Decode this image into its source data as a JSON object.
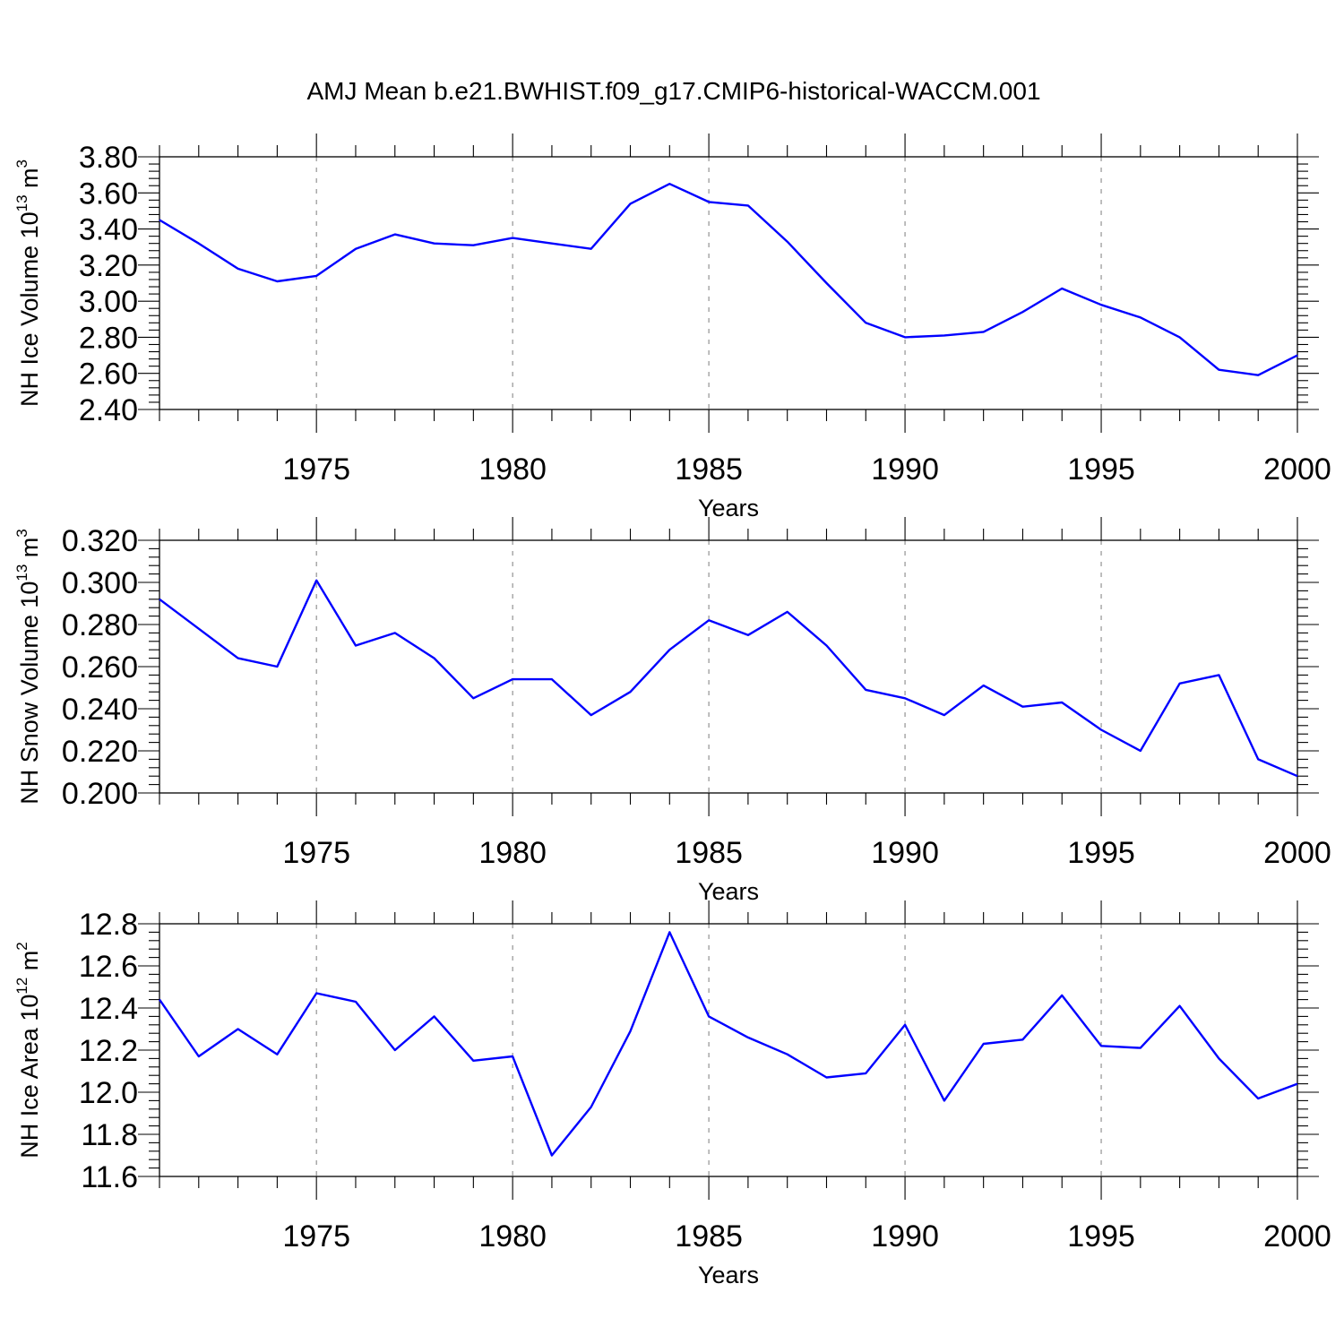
{
  "title": "AMJ Mean b.e21.BWHIST.f09_g17.CMIP6-historical-WACCM.001",
  "chart_data": [
    {
      "type": "line",
      "title": "AMJ Mean b.e21.BWHIST.f09_g17.CMIP6-historical-WACCM.001",
      "xlabel": "Years",
      "ylabel": "NH Ice Volume 10",
      "ylabel_exponent": "13",
      "ylabel_unit": "m",
      "ylabel_unit_exponent": "3",
      "xlim": [
        1971,
        2000
      ],
      "ylim": [
        2.4,
        3.8
      ],
      "xticks": [
        1975,
        1980,
        1985,
        1990,
        1995,
        2000
      ],
      "xtick_labels": [
        "1975",
        "1980",
        "1985",
        "1990",
        "1995",
        "2000"
      ],
      "yticks": [
        2.4,
        2.6,
        2.8,
        3.0,
        3.2,
        3.4,
        3.6,
        3.8
      ],
      "ytick_labels": [
        "2.40",
        "2.60",
        "2.80",
        "3.00",
        "3.20",
        "3.40",
        "3.60",
        "3.80"
      ],
      "grid": "vertical dashed at labeled years",
      "color": "#0000ff",
      "x": [
        1971,
        1972,
        1973,
        1974,
        1975,
        1976,
        1977,
        1978,
        1979,
        1980,
        1981,
        1982,
        1983,
        1984,
        1985,
        1986,
        1987,
        1988,
        1989,
        1990,
        1991,
        1992,
        1993,
        1994,
        1995,
        1996,
        1997,
        1998,
        1999,
        2000
      ],
      "values": [
        3.45,
        3.32,
        3.18,
        3.11,
        3.14,
        3.29,
        3.37,
        3.32,
        3.31,
        3.35,
        3.32,
        3.29,
        3.54,
        3.65,
        3.55,
        3.53,
        3.33,
        3.1,
        2.88,
        2.8,
        2.81,
        2.83,
        2.94,
        3.07,
        2.98,
        2.91,
        2.8,
        2.62,
        2.59,
        2.7
      ]
    },
    {
      "type": "line",
      "xlabel": "Years",
      "ylabel": "NH Snow Volume 10",
      "ylabel_exponent": "13",
      "ylabel_unit": "m",
      "ylabel_unit_exponent": "3",
      "xlim": [
        1971,
        2000
      ],
      "ylim": [
        0.2,
        0.32
      ],
      "xticks": [
        1975,
        1980,
        1985,
        1990,
        1995,
        2000
      ],
      "xtick_labels": [
        "1975",
        "1980",
        "1985",
        "1990",
        "1995",
        "2000"
      ],
      "yticks": [
        0.2,
        0.22,
        0.24,
        0.26,
        0.28,
        0.3,
        0.32
      ],
      "ytick_labels": [
        "0.200",
        "0.220",
        "0.240",
        "0.260",
        "0.280",
        "0.300",
        "0.320"
      ],
      "grid": "vertical dashed at labeled years",
      "color": "#0000ff",
      "x": [
        1971,
        1972,
        1973,
        1974,
        1975,
        1976,
        1977,
        1978,
        1979,
        1980,
        1981,
        1982,
        1983,
        1984,
        1985,
        1986,
        1987,
        1988,
        1989,
        1990,
        1991,
        1992,
        1993,
        1994,
        1995,
        1996,
        1997,
        1998,
        1999,
        2000
      ],
      "values": [
        0.292,
        0.278,
        0.264,
        0.26,
        0.301,
        0.27,
        0.276,
        0.264,
        0.245,
        0.254,
        0.254,
        0.237,
        0.248,
        0.268,
        0.282,
        0.275,
        0.286,
        0.27,
        0.249,
        0.245,
        0.237,
        0.251,
        0.241,
        0.243,
        0.23,
        0.22,
        0.252,
        0.256,
        0.216,
        0.208
      ]
    },
    {
      "type": "line",
      "xlabel": "Years",
      "ylabel": "NH Ice Area 10",
      "ylabel_exponent": "12",
      "ylabel_unit": "m",
      "ylabel_unit_exponent": "2",
      "xlim": [
        1971,
        2000
      ],
      "ylim": [
        11.6,
        12.8
      ],
      "xticks": [
        1975,
        1980,
        1985,
        1990,
        1995,
        2000
      ],
      "xtick_labels": [
        "1975",
        "1980",
        "1985",
        "1990",
        "1995",
        "2000"
      ],
      "yticks": [
        11.6,
        11.8,
        12.0,
        12.2,
        12.4,
        12.6,
        12.8
      ],
      "ytick_labels": [
        "11.6",
        "11.8",
        "12.0",
        "12.2",
        "12.4",
        "12.6",
        "12.8"
      ],
      "grid": "vertical dashed at labeled years",
      "color": "#0000ff",
      "x": [
        1971,
        1972,
        1973,
        1974,
        1975,
        1976,
        1977,
        1978,
        1979,
        1980,
        1981,
        1982,
        1983,
        1984,
        1985,
        1986,
        1987,
        1988,
        1989,
        1990,
        1991,
        1992,
        1993,
        1994,
        1995,
        1996,
        1997,
        1998,
        1999,
        2000
      ],
      "values": [
        12.44,
        12.17,
        12.3,
        12.18,
        12.47,
        12.43,
        12.2,
        12.36,
        12.15,
        12.17,
        11.7,
        11.93,
        12.29,
        12.76,
        12.36,
        12.26,
        12.18,
        12.07,
        12.09,
        12.32,
        11.96,
        12.23,
        12.25,
        12.46,
        12.22,
        12.21,
        12.41,
        12.16,
        11.97,
        12.04
      ]
    }
  ]
}
